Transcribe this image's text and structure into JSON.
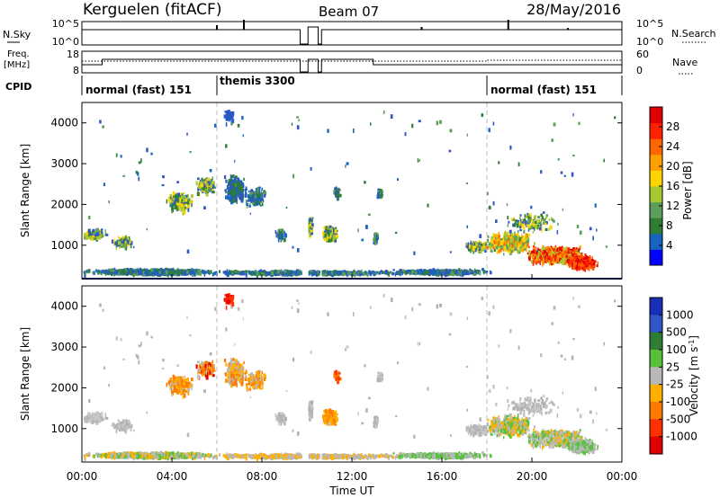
{
  "header": {
    "station": "Kerguelen (fitACF)",
    "beam": "Beam 07",
    "date": "28/May/2016"
  },
  "noise_panel": {
    "left_label": "N.Sky",
    "left_ticks": [
      "10^5",
      "10^0"
    ],
    "right_label": "N.Search",
    "right_ticks": [
      "10^5",
      "10^0"
    ]
  },
  "freq_panel": {
    "left_label_line1": "Freq.",
    "left_label_line2": "[MHz]",
    "left_ticks": [
      "18",
      "8"
    ],
    "right_label": "Nave",
    "right_ticks": [
      "60",
      "0"
    ]
  },
  "cpid": {
    "label": "CPID",
    "segments": [
      {
        "text": "normal (fast) 151",
        "start_hour": 0
      },
      {
        "text": "themis 3300",
        "start_hour": 6
      },
      {
        "text": "normal (fast) 151",
        "start_hour": 18
      }
    ]
  },
  "chart_data": [
    {
      "type": "heatmap",
      "ylabel": "Slant Range [km]",
      "xlim": [
        0,
        24
      ],
      "ylim": [
        180,
        4500
      ],
      "yticks": [
        1000,
        2000,
        3000,
        4000
      ],
      "colorbar": {
        "label": "Power [dB]",
        "ticks": [
          "28",
          "24",
          "20",
          "16",
          "12",
          "8",
          "4"
        ]
      }
    },
    {
      "type": "heatmap",
      "ylabel": "Slant Range [km]",
      "xlabel": "Time UT",
      "xlim": [
        0,
        24
      ],
      "ylim": [
        180,
        4500
      ],
      "xticks": [
        "00:00",
        "04:00",
        "08:00",
        "12:00",
        "16:00",
        "20:00",
        "00:00"
      ],
      "yticks": [
        1000,
        2000,
        3000,
        4000
      ],
      "colorbar": {
        "label": "Velocity [m s-1]",
        "ticks": [
          "1000",
          "500",
          "100",
          "25",
          "-25",
          "-100",
          "-500",
          "-1000"
        ]
      }
    }
  ]
}
